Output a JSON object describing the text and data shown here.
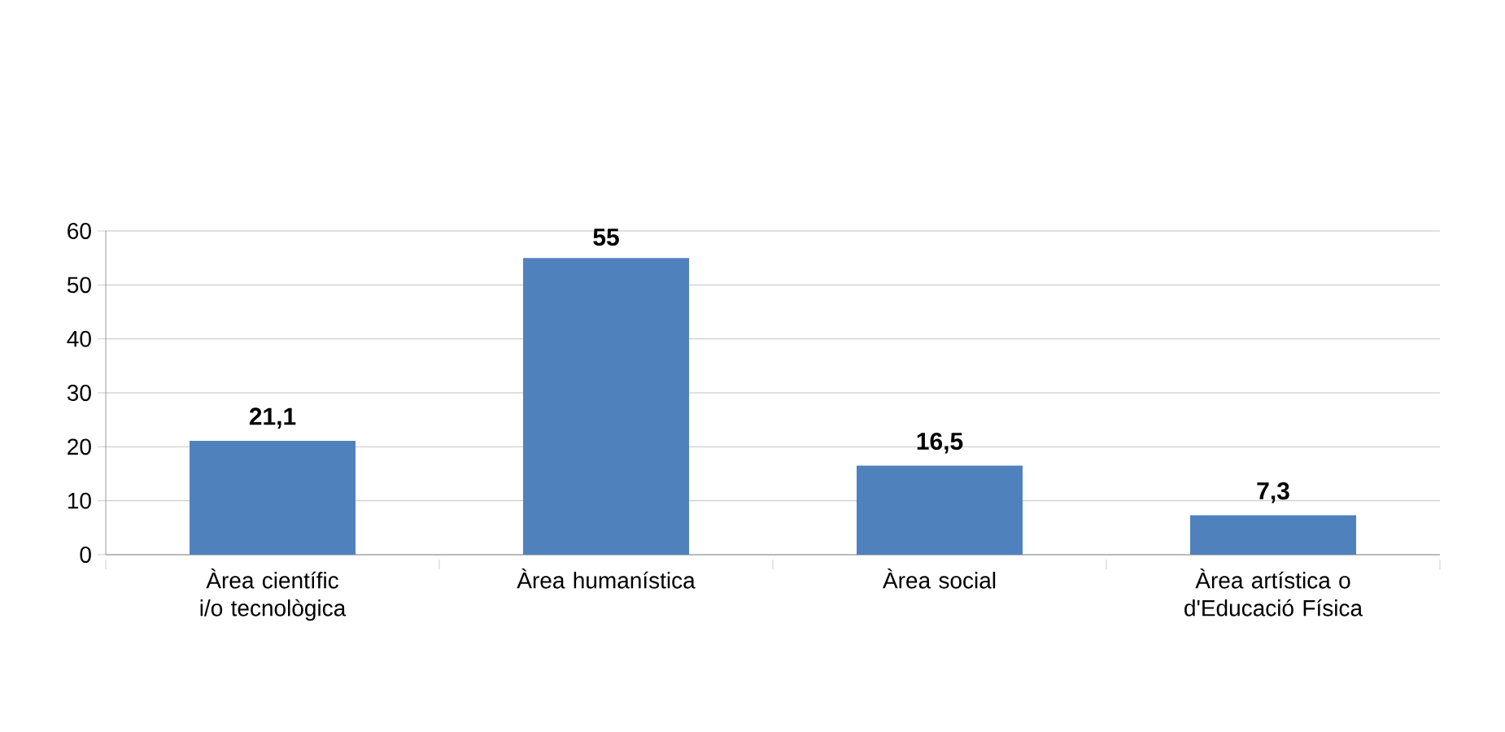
{
  "chart_data": {
    "type": "bar",
    "categories": [
      "Àrea científic i/o tecnològica",
      "Àrea humanística",
      "Àrea social",
      "Àrea artística o d'Educació Física"
    ],
    "values": [
      21.1,
      55,
      16.5,
      7.3
    ],
    "color": "#4f81bd",
    "value_labels": [
      "21,1",
      "55",
      "16,5",
      "7,3"
    ],
    "ylim": [
      0,
      60
    ],
    "yticks": [
      0,
      10,
      20,
      30,
      40,
      50,
      60
    ],
    "grid": "y"
  }
}
